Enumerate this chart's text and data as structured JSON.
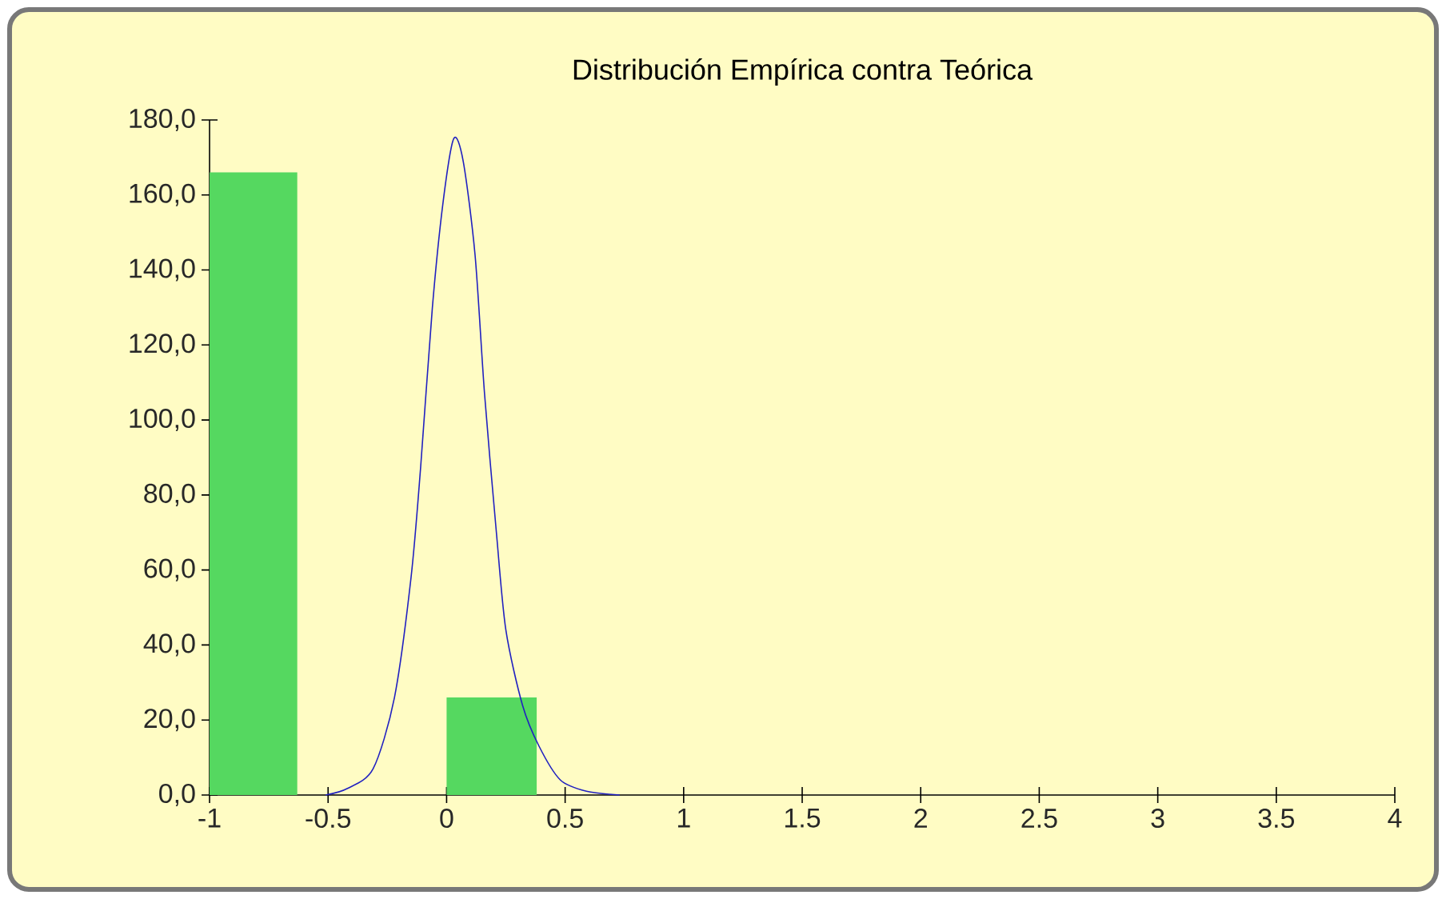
{
  "chart_data": {
    "type": "histogram",
    "title": "Distribución Empírica contra Teórica",
    "bins": [
      -1,
      -0.63,
      0,
      0.38
    ],
    "values": [
      166,
      0,
      26
    ],
    "color": "#55d860",
    "series": [
      {
        "type": "line",
        "color": "#2020c0",
        "x": [
          -0.51,
          -0.42,
          -0.31,
          -0.22,
          -0.15,
          -0.11,
          -0.06,
          -0.015,
          0.03,
          0.07,
          0.12,
          0.16,
          0.21,
          0.25,
          0.32,
          0.39,
          0.48,
          0.59,
          0.73
        ],
        "values": [
          0,
          1.7,
          7,
          26,
          58,
          87,
          130,
          158,
          175,
          169,
          144,
          107,
          70,
          44,
          24,
          13,
          4,
          1,
          0
        ]
      }
    ],
    "xlim": [
      -1,
      4
    ],
    "ylim": [
      0,
      180
    ],
    "xticks": [
      -1,
      -0.5,
      0,
      0.5,
      1,
      1.5,
      2,
      2.5,
      3,
      3.5,
      4
    ],
    "yticks": [
      {
        "value": 0,
        "label": "0,0"
      },
      {
        "value": 20,
        "label": "20,0"
      },
      {
        "value": 40,
        "label": "40,0"
      },
      {
        "value": 60,
        "label": "60,0"
      },
      {
        "value": 80,
        "label": "80,0"
      },
      {
        "value": 100,
        "label": "100,0"
      },
      {
        "value": 120,
        "label": "120,0"
      },
      {
        "value": 140,
        "label": "140,0"
      },
      {
        "value": 160,
        "label": "160,0"
      },
      {
        "value": 180,
        "label": "180,0"
      }
    ],
    "grid": false,
    "marker": "none",
    "line_style": "solid"
  }
}
